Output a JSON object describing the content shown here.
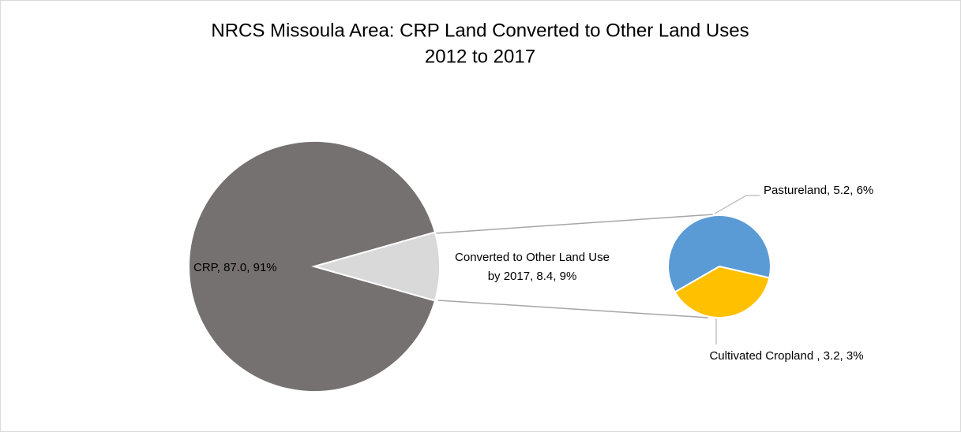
{
  "chart_data": {
    "type": "pie-of-pie",
    "title": [
      "NRCS Missoula Area: CRP Land Converted to Other Land Uses",
      "2012 to 2017"
    ],
    "categories": [
      "CRP",
      "Converted to Other Land Use by 2017"
    ],
    "values": [
      87.0,
      8.4
    ],
    "value_labels": [
      [
        "CRP, 87.0, 91%"
      ],
      [
        "Converted to Other Land Use",
        "by 2017, 8.4, 9%"
      ]
    ],
    "colors": [
      "#767171",
      "#d9d9d9"
    ],
    "secondary": {
      "categories": [
        "Pastureland",
        "Cultivated Cropland "
      ],
      "values": [
        5.2,
        3.2
      ],
      "value_labels": [
        "Pastureland, 5.2, 6%",
        "Cultivated Cropland , 3.2, 3%"
      ],
      "colors": [
        "#5b9bd5",
        "#ffc000"
      ]
    }
  }
}
